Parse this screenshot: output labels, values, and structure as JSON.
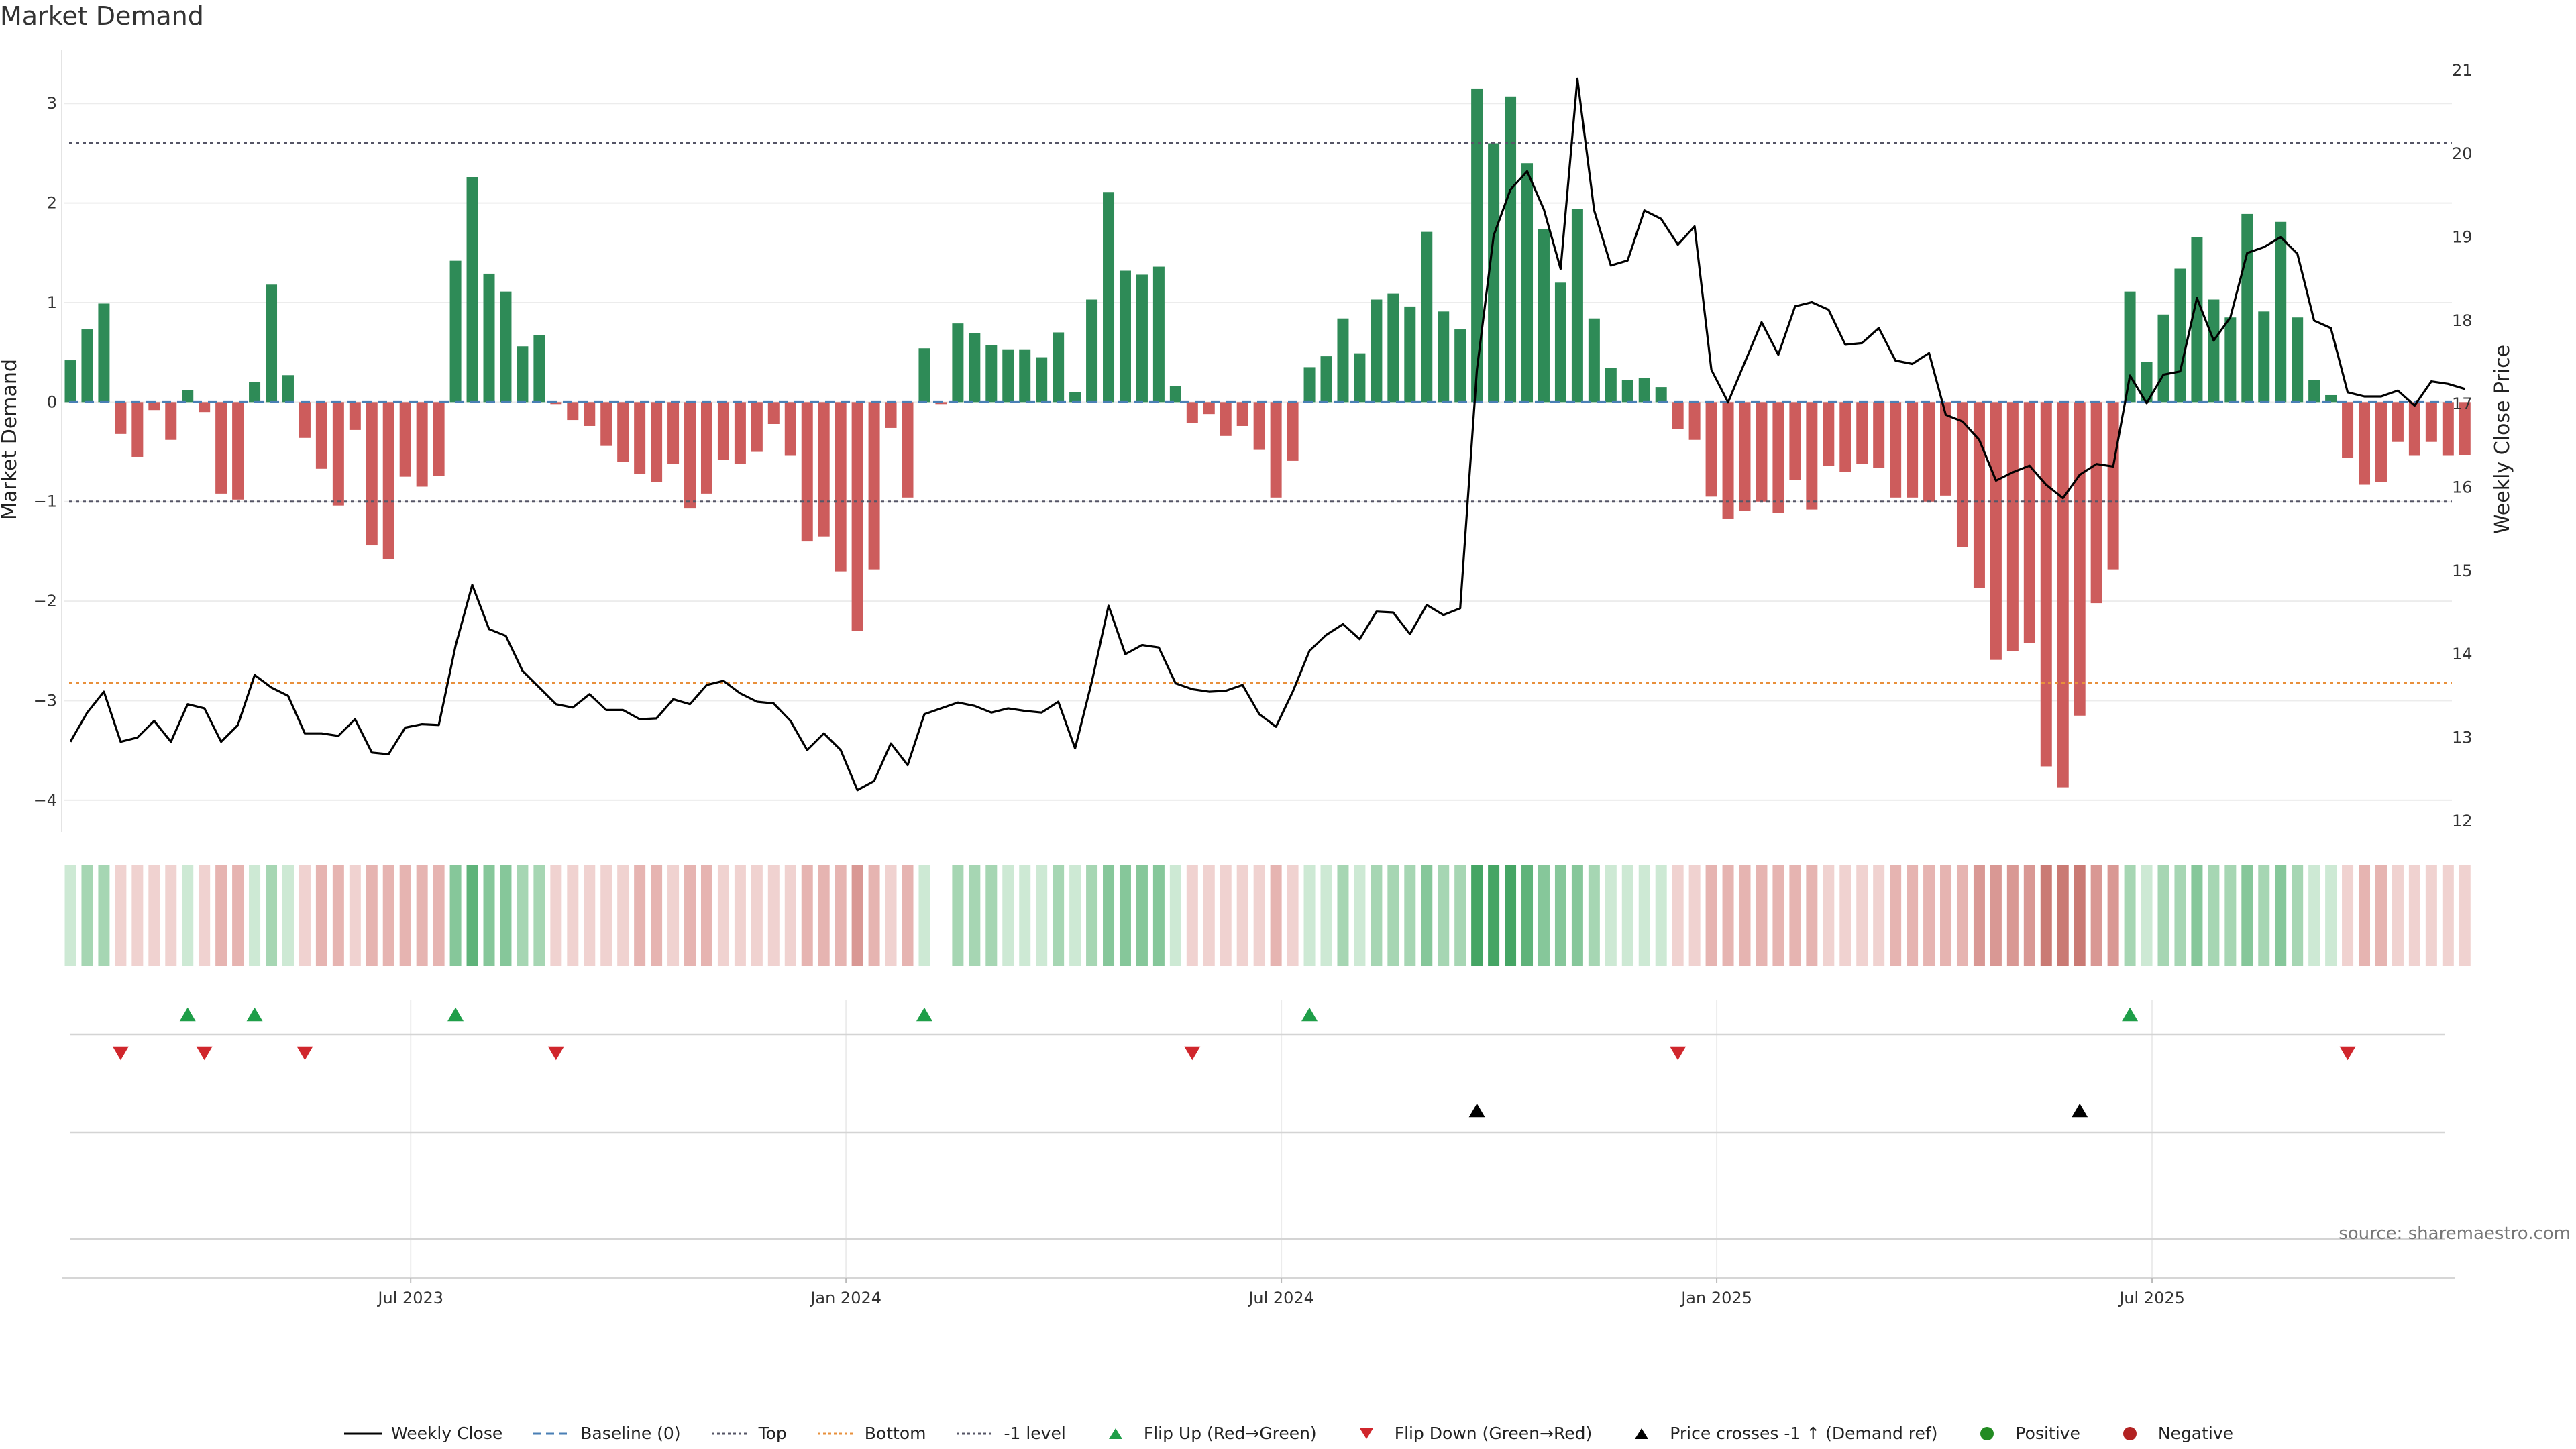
{
  "chart_data": {
    "type": "bar",
    "title": "Market Demand",
    "ylabel": "Market Demand",
    "y2label": "Weekly Close Price",
    "ylim": [
      -4.25,
      3.5
    ],
    "y2lim": [
      11.95,
      21.2
    ],
    "yticks": [
      {
        "v": 3,
        "label": "3"
      },
      {
        "v": 2,
        "label": "2"
      },
      {
        "v": 1,
        "label": "1"
      },
      {
        "v": 0,
        "label": "0"
      },
      {
        "v": -1,
        "label": "−1"
      },
      {
        "v": -2,
        "label": "−2"
      },
      {
        "v": -3,
        "label": "−3"
      },
      {
        "v": -4,
        "label": "−4"
      }
    ],
    "y2ticks": [
      12,
      13,
      14,
      15,
      16,
      17,
      18,
      19,
      20,
      21
    ],
    "xticks": [
      {
        "i": 20,
        "label": "Jul 2023"
      },
      {
        "i": 46,
        "label": "Jan 2024"
      },
      {
        "i": 72,
        "label": "Jul 2024"
      },
      {
        "i": 98,
        "label": "Jan 2025"
      },
      {
        "i": 124,
        "label": "Jul 2025"
      }
    ],
    "n_weeks": 144,
    "demand": [
      0.42,
      0.73,
      0.99,
      -0.32,
      -0.55,
      -0.08,
      -0.38,
      0.12,
      -0.1,
      -0.92,
      -0.98,
      0.2,
      1.18,
      0.27,
      -0.36,
      -0.67,
      -1.04,
      -0.28,
      -1.44,
      -1.58,
      -0.75,
      -0.85,
      -0.74,
      1.42,
      2.26,
      1.29,
      1.11,
      0.56,
      0.67,
      -0.02,
      -0.18,
      -0.24,
      -0.44,
      -0.6,
      -0.72,
      -0.8,
      -0.62,
      -1.07,
      -0.92,
      -0.58,
      -0.62,
      -0.5,
      -0.22,
      -0.54,
      -1.4,
      -1.35,
      -1.7,
      -2.3,
      -1.68,
      -0.26,
      -0.96,
      0.54,
      -0.02,
      0.79,
      0.69,
      0.57,
      0.53,
      0.53,
      0.45,
      0.7,
      0.1,
      1.03,
      2.11,
      1.32,
      1.28,
      1.36,
      0.16,
      -0.21,
      -0.12,
      -0.34,
      -0.24,
      -0.48,
      -0.96,
      -0.59,
      0.35,
      0.46,
      0.84,
      0.49,
      1.03,
      1.09,
      0.96,
      1.71,
      0.91,
      0.73,
      3.15,
      2.6,
      3.07,
      2.4,
      1.74,
      1.2,
      1.94,
      0.84,
      0.34,
      0.22,
      0.24,
      0.15,
      -0.27,
      -0.38,
      -0.95,
      -1.17,
      -1.09,
      -1.0,
      -1.11,
      -0.78,
      -1.08,
      -0.64,
      -0.7,
      -0.62,
      -0.66,
      -0.96,
      -0.96,
      -1.0,
      -0.94,
      -1.46,
      -1.87,
      -2.59,
      -2.5,
      -2.42,
      -3.66,
      -3.87,
      -3.15,
      -2.02,
      -1.68,
      1.11,
      0.4,
      0.88,
      1.34,
      1.66,
      1.03,
      0.85,
      1.89,
      0.91,
      1.81,
      0.85,
      0.22,
      0.07,
      -0.56,
      -0.83,
      -0.8,
      -0.4,
      -0.54,
      -0.4,
      -0.54,
      -0.53
    ],
    "weekly_close": [
      12.95,
      13.3,
      13.55,
      12.95,
      13.0,
      13.2,
      12.95,
      13.4,
      13.35,
      12.95,
      13.15,
      13.75,
      13.6,
      13.5,
      13.05,
      13.05,
      13.02,
      13.22,
      12.82,
      12.8,
      13.12,
      13.16,
      13.15,
      14.1,
      14.83,
      14.3,
      14.22,
      13.8,
      13.6,
      13.4,
      13.36,
      13.52,
      13.33,
      13.33,
      13.22,
      13.23,
      13.46,
      13.4,
      13.63,
      13.68,
      13.53,
      13.43,
      13.41,
      13.2,
      12.85,
      13.05,
      12.85,
      12.37,
      12.48,
      12.93,
      12.67,
      13.28,
      13.35,
      13.42,
      13.38,
      13.3,
      13.35,
      13.32,
      13.3,
      13.43,
      12.87,
      13.67,
      14.58,
      14.0,
      14.11,
      14.08,
      13.65,
      13.58,
      13.55,
      13.56,
      13.63,
      13.28,
      13.13,
      13.55,
      14.04,
      14.23,
      14.36,
      14.18,
      14.51,
      14.5,
      14.24,
      14.59,
      14.47,
      14.55,
      17.41,
      19.02,
      19.57,
      19.79,
      19.33,
      18.62,
      20.9,
      19.32,
      18.66,
      18.72,
      19.32,
      19.22,
      18.91,
      19.13,
      17.41,
      17.02,
      17.5,
      17.98,
      17.59,
      18.17,
      18.22,
      18.13,
      17.71,
      17.73,
      17.91,
      17.52,
      17.48,
      17.61,
      16.87,
      16.79,
      16.57,
      16.08,
      16.18,
      16.26,
      16.03,
      15.87,
      16.15,
      16.28,
      16.25,
      17.34,
      17.01,
      17.35,
      17.39,
      18.27,
      17.76,
      18.04,
      18.81,
      18.88,
      19.0,
      18.8,
      18.0,
      17.91,
      17.14,
      17.09,
      17.09,
      17.16,
      16.98,
      17.27,
      17.24,
      17.18
    ],
    "shade_levels": [
      1,
      2,
      2,
      1,
      1,
      1,
      1,
      1,
      1,
      2,
      2,
      1,
      2,
      1,
      1,
      2,
      2,
      1,
      2,
      2,
      2,
      2,
      2,
      3,
      4,
      3,
      3,
      2,
      2,
      1,
      1,
      1,
      1,
      1,
      2,
      2,
      1,
      2,
      2,
      1,
      1,
      1,
      1,
      1,
      2,
      2,
      2,
      3,
      2,
      1,
      2,
      1,
      0,
      2,
      2,
      2,
      1,
      1,
      1,
      2,
      1,
      2,
      3,
      3,
      3,
      3,
      1,
      1,
      1,
      1,
      1,
      1,
      2,
      1,
      1,
      1,
      2,
      1,
      2,
      2,
      2,
      3,
      2,
      2,
      5,
      5,
      5,
      4,
      3,
      3,
      3,
      2,
      1,
      1,
      1,
      1,
      1,
      1,
      2,
      2,
      2,
      2,
      2,
      2,
      2,
      1,
      1,
      1,
      1,
      2,
      2,
      2,
      2,
      2,
      3,
      3,
      3,
      3,
      4,
      4,
      4,
      3,
      3,
      2,
      1,
      2,
      2,
      3,
      2,
      2,
      3,
      2,
      3,
      2,
      1,
      1,
      1,
      2,
      2,
      1,
      1,
      1,
      1,
      1
    ],
    "flip_up_weeks": [
      7,
      11,
      23,
      51,
      74,
      123
    ],
    "flip_down_weeks": [
      3,
      8,
      14,
      29,
      67,
      96,
      136
    ],
    "price_cross_weeks": [
      84,
      120
    ],
    "ref_levels": {
      "top": 2.6,
      "bottom": -2.82,
      "minus_one": -1.0,
      "baseline": 0
    },
    "colors": {
      "positive": "#2e8b57",
      "negative": "#cd5c5c",
      "close": "#000000",
      "flip_up": "#1e9e48",
      "flip_down": "#d0262c",
      "cross": "#000000",
      "bottom_line": "#e8903c",
      "ref_line": "#555566",
      "baseline": "#4a7fb5",
      "legend_positive": "#228b22",
      "legend_negative": "#b22222"
    }
  },
  "source_text": "source: sharemaestro.com",
  "legend": [
    {
      "label": "Weekly Close",
      "symbol": "line"
    },
    {
      "label": "Baseline (0)",
      "symbol": "dash-blue"
    },
    {
      "label": "Top",
      "symbol": "dot-gray"
    },
    {
      "label": "Bottom",
      "symbol": "dot-orange"
    },
    {
      "label": "-1 level",
      "symbol": "dot-gray"
    },
    {
      "label": "Flip Up (Red→Green)",
      "symbol": "tri-up-green"
    },
    {
      "label": "Flip Down (Green→Red)",
      "symbol": "tri-down-red"
    },
    {
      "label": "Price crosses -1 ↑ (Demand ref)",
      "symbol": "tri-up-black"
    },
    {
      "label": "Positive",
      "symbol": "dot-green"
    },
    {
      "label": "Negative",
      "symbol": "dot-red"
    }
  ]
}
